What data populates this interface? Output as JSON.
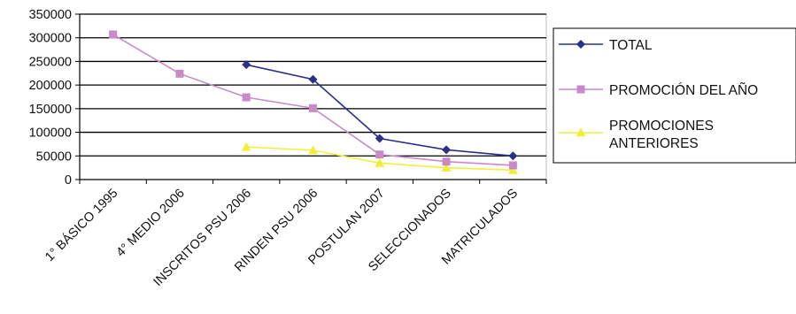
{
  "chart_data": {
    "type": "line",
    "title": "",
    "xlabel": "",
    "ylabel": "",
    "ylim": [
      0,
      350000
    ],
    "y_ticks": [
      "350000",
      "300000",
      "250000",
      "200000",
      "150000",
      "100000",
      "50000",
      "0"
    ],
    "grid": "horizontal",
    "legend_position": "right",
    "categories": [
      "1° BÁSICO 1995",
      "4° MEDIO 2006",
      "INSCRITOS PSU 2006",
      "RINDEN PSU 2006",
      "POSTULAN  2007",
      "SELECCIONADOS",
      "MATRICULADOS"
    ],
    "series": [
      {
        "name": "TOTAL",
        "color": "#2b2f8c",
        "marker": "diamond",
        "values": [
          null,
          null,
          243000,
          212000,
          87000,
          63000,
          50000
        ]
      },
      {
        "name": "PROMOCIÓN DEL AÑO",
        "color": "#c98ac9",
        "marker": "square",
        "values": [
          307000,
          224000,
          174000,
          151000,
          53000,
          38000,
          30000
        ]
      },
      {
        "name_lines": [
          "PROMOCIONES",
          "ANTERIORES"
        ],
        "color": "#f2ef3a",
        "marker": "triangle",
        "values": [
          null,
          null,
          69000,
          62000,
          35000,
          25000,
          20000
        ]
      }
    ]
  }
}
